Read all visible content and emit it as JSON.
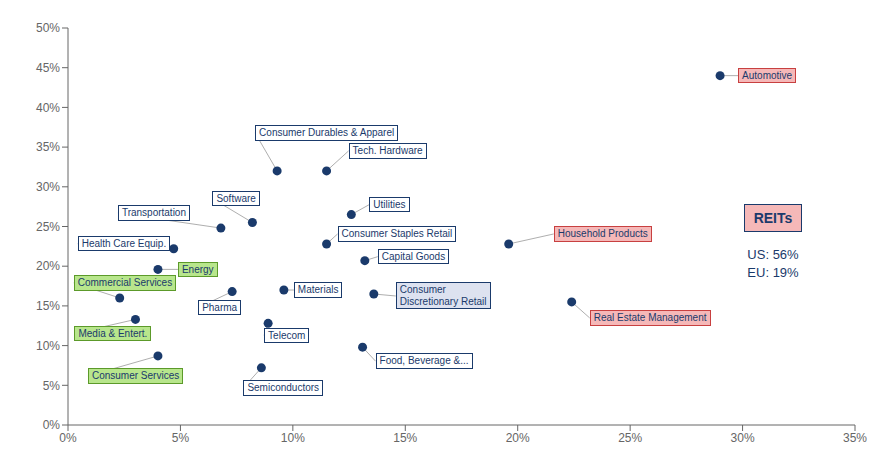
{
  "chart_data": {
    "type": "scatter",
    "color": "#1a3a6b",
    "grid": false,
    "x": [
      0.29,
      0.093,
      0.115,
      0.082,
      0.126,
      0.068,
      0.047,
      0.115,
      0.196,
      0.132,
      0.04,
      0.136,
      0.023,
      0.073,
      0.096,
      0.03,
      0.089,
      0.04,
      0.086,
      0.131,
      0.224
    ],
    "values": [
      0.44,
      0.32,
      0.32,
      0.255,
      0.265,
      0.248,
      0.222,
      0.228,
      0.228,
      0.207,
      0.196,
      0.165,
      0.16,
      0.168,
      0.17,
      0.133,
      0.128,
      0.087,
      0.072,
      0.098,
      0.155
    ],
    "labels": [
      "Automotive",
      "Consumer Durables & Apparel",
      "Tech. Hardware",
      "Software",
      "Utilities",
      "Transportation",
      "Health Care Equip.",
      "Consumer Staples Retail",
      "Household Products",
      "Capital Goods",
      "Energy",
      "Consumer\nDiscretionary Retail",
      "Commercial Services",
      "Pharma",
      "Materials",
      "Media & Entert.",
      "Telecom",
      "Consumer Services",
      "Semiconductors",
      "Food, Beverage &...",
      "Real Estate Management"
    ],
    "label_colors": [
      "#f5b8b8",
      "#ffffff",
      "#ffffff",
      "#ffffff",
      "#ffffff",
      "#ffffff",
      "#ffffff",
      "#ffffff",
      "#f5b8b8",
      "#ffffff",
      "#b8e68c",
      "#dde2f0",
      "#b8e68c",
      "#ffffff",
      "#ffffff",
      "#b8e68c",
      "#ffffff",
      "#b8e68c",
      "#ffffff",
      "#ffffff",
      "#f5b8b8"
    ],
    "label_edge_colors": [
      "#c84040",
      "#1a3a6b",
      "#1a3a6b",
      "#1a3a6b",
      "#1a3a6b",
      "#1a3a6b",
      "#1a3a6b",
      "#1a3a6b",
      "#c84040",
      "#1a3a6b",
      "#5c9a2a",
      "#1a3a6b",
      "#5c9a2a",
      "#1a3a6b",
      "#1a3a6b",
      "#5c9a2a",
      "#1a3a6b",
      "#5c9a2a",
      "#1a3a6b",
      "#1a3a6b",
      "#c84040"
    ],
    "annotations": [
      {
        "text": "REITs",
        "color": "#f5b8b8",
        "edge_color": "#1a3a6b"
      },
      {
        "text": "US: 56%"
      },
      {
        "text": "EU: 19%"
      }
    ],
    "xlim": [
      0,
      0.35
    ],
    "ylim": [
      0,
      0.5
    ],
    "xticks": [
      {
        "value": 0,
        "label": "0%"
      },
      {
        "value": 0.05,
        "label": "5%"
      },
      {
        "value": 0.1,
        "label": "10%"
      },
      {
        "value": 0.15,
        "label": "15%"
      },
      {
        "value": 0.2,
        "label": "20%"
      },
      {
        "value": 0.25,
        "label": "25%"
      },
      {
        "value": 0.3,
        "label": "30%"
      },
      {
        "value": 0.35,
        "label": "35%"
      }
    ],
    "yticks": [
      {
        "value": 0,
        "label": "0%"
      },
      {
        "value": 0.05,
        "label": "5%"
      },
      {
        "value": 0.1,
        "label": "10%"
      },
      {
        "value": 0.15,
        "label": "15%"
      },
      {
        "value": 0.2,
        "label": "20%"
      },
      {
        "value": 0.25,
        "label": "25%"
      },
      {
        "value": 0.3,
        "label": "30%"
      },
      {
        "value": 0.35,
        "label": "35%"
      },
      {
        "value": 0.4,
        "label": "40%"
      },
      {
        "value": 0.45,
        "label": "45%"
      },
      {
        "value": 0.5,
        "label": "50%"
      }
    ]
  }
}
